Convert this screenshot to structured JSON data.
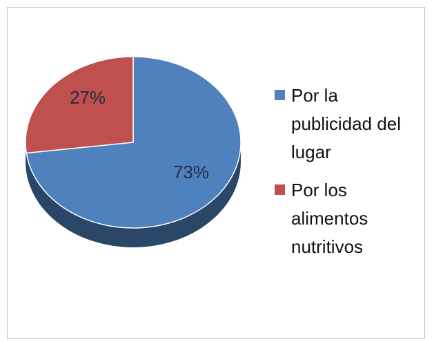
{
  "chart_data": {
    "type": "pie",
    "title": "",
    "slices": [
      {
        "label": "Por la publicidad del lugar",
        "value": 73,
        "display": "73%",
        "color": "#4f81bd"
      },
      {
        "label": "Por los alimentos nutritivos",
        "value": 27,
        "display": "27%",
        "color": "#c0504d"
      }
    ],
    "legend_position": "right"
  },
  "legend": {
    "items": [
      {
        "lines": [
          "Por la",
          "publicidad del",
          "lugar"
        ],
        "color": "#4f81bd"
      },
      {
        "lines": [
          "Por los",
          "alimentos",
          "nutritivos"
        ],
        "color": "#c0504d"
      }
    ]
  }
}
